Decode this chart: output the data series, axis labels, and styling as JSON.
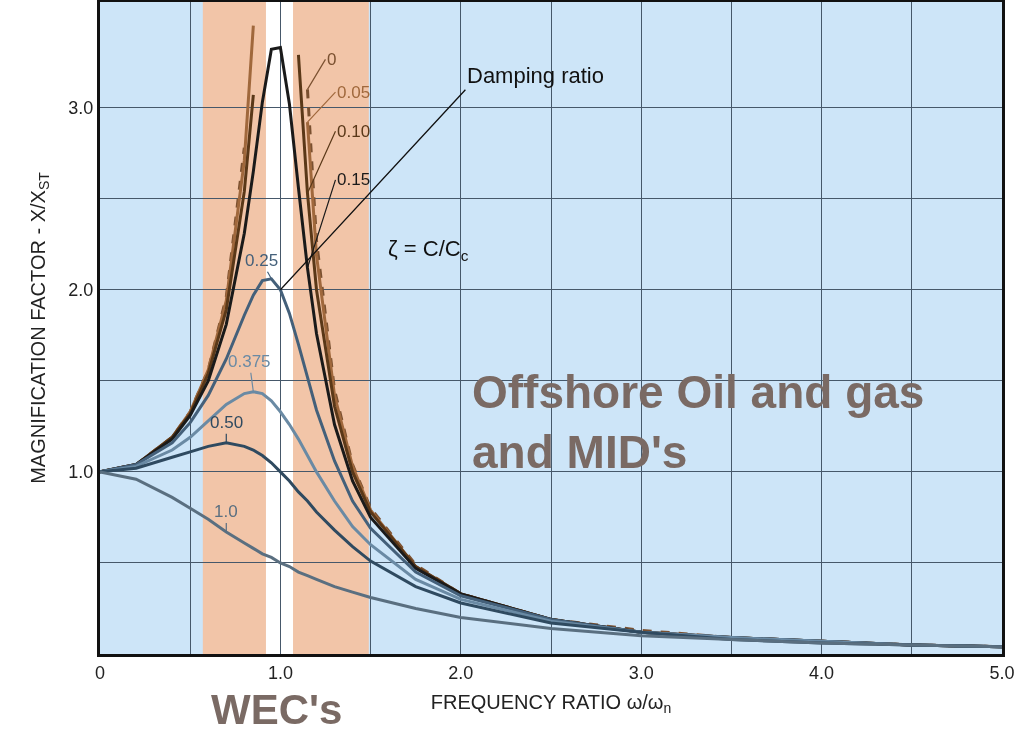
{
  "chart_data": {
    "type": "line",
    "xlabel": "FREQUENCY RATIO ω/ω$_{n}$",
    "ylabel": "MAGNIFICATION FACTOR - X/X$_{ST}$",
    "x": [
      0,
      0.2,
      0.4,
      0.5,
      0.6,
      0.7,
      0.8,
      0.85,
      0.9,
      0.95,
      1.0,
      1.05,
      1.1,
      1.15,
      1.2,
      1.3,
      1.4,
      1.5,
      1.75,
      2.0,
      2.5,
      3.0,
      3.5,
      4.0,
      4.5,
      5.0
    ],
    "series": [
      {
        "name": "0",
        "color": "#7a5030",
        "line_style": "dashed",
        "values": [
          1,
          1.04,
          1.19,
          1.33,
          1.56,
          1.96,
          2.78,
          null,
          null,
          null,
          null,
          null,
          null,
          3.1,
          2.27,
          1.45,
          1.04,
          0.8,
          0.49,
          0.33,
          0.19,
          0.13,
          0.09,
          0.07,
          0.05,
          0.04
        ]
      },
      {
        "name": "0.05",
        "color": "#a0683c",
        "values": [
          1,
          1.04,
          1.19,
          1.33,
          1.56,
          1.94,
          2.71,
          3.45,
          null,
          null,
          null,
          null,
          null,
          2.92,
          2.19,
          1.42,
          1.03,
          0.79,
          0.48,
          0.33,
          0.19,
          0.12,
          0.09,
          0.07,
          0.05,
          0.04
        ]
      },
      {
        "name": "0.10",
        "color": "#5a3818",
        "values": [
          1,
          1.04,
          1.19,
          1.32,
          1.54,
          1.89,
          2.54,
          3.07,
          null,
          null,
          null,
          null,
          3.29,
          2.53,
          2.0,
          1.36,
          1.0,
          0.78,
          0.48,
          0.33,
          0.19,
          0.12,
          0.09,
          0.07,
          0.05,
          0.04
        ]
      },
      {
        "name": "0.15",
        "color": "#1a1a1a",
        "values": [
          1,
          1.04,
          1.18,
          1.31,
          1.5,
          1.81,
          2.31,
          2.65,
          3.03,
          3.32,
          3.33,
          3.02,
          2.56,
          2.12,
          1.76,
          1.26,
          0.95,
          0.75,
          0.47,
          0.33,
          0.19,
          0.12,
          0.09,
          0.07,
          0.05,
          0.04
        ]
      },
      {
        "name": "0.25",
        "color": "#44607a",
        "values": [
          1,
          1.04,
          1.16,
          1.27,
          1.42,
          1.62,
          1.86,
          1.97,
          2.05,
          2.06,
          2.0,
          1.87,
          1.7,
          1.52,
          1.34,
          1.06,
          0.84,
          0.69,
          0.45,
          0.32,
          0.19,
          0.12,
          0.09,
          0.07,
          0.05,
          0.04
        ]
      },
      {
        "name": "0.375",
        "color": "#6a8aa4",
        "values": [
          1,
          1.03,
          1.12,
          1.19,
          1.28,
          1.37,
          1.43,
          1.44,
          1.43,
          1.39,
          1.33,
          1.26,
          1.18,
          1.09,
          1.0,
          0.84,
          0.7,
          0.6,
          0.41,
          0.3,
          0.18,
          0.12,
          0.09,
          0.07,
          0.05,
          0.04
        ]
      },
      {
        "name": "0.50",
        "color": "#2f4a60",
        "values": [
          1,
          1.02,
          1.08,
          1.11,
          1.14,
          1.16,
          1.14,
          1.12,
          1.09,
          1.05,
          1.0,
          0.95,
          0.89,
          0.84,
          0.78,
          0.68,
          0.59,
          0.51,
          0.37,
          0.28,
          0.17,
          0.12,
          0.08,
          0.06,
          0.05,
          0.04
        ]
      },
      {
        "name": "1.0",
        "color": "#5a6f80",
        "values": [
          1,
          0.96,
          0.86,
          0.8,
          0.74,
          0.67,
          0.61,
          0.58,
          0.55,
          0.53,
          0.5,
          0.48,
          0.45,
          0.43,
          0.41,
          0.37,
          0.34,
          0.31,
          0.25,
          0.2,
          0.14,
          0.1,
          0.08,
          0.06,
          0.05,
          0.04
        ]
      }
    ],
    "xlim": [
      0,
      5.0
    ],
    "xticks": [
      0,
      {
        "value": 0.5,
        "label": null
      },
      {
        "value": 1,
        "label": "1.0"
      },
      {
        "value": 1.5,
        "label": null
      },
      {
        "value": 2,
        "label": "2.0"
      },
      {
        "value": 2.5,
        "label": null
      },
      {
        "value": 3,
        "label": "3.0"
      },
      {
        "value": 3.5,
        "label": null
      },
      {
        "value": 4,
        "label": "4.0"
      },
      {
        "value": 4.5,
        "label": null
      },
      {
        "value": 5,
        "label": "5.0"
      }
    ],
    "ylim": [
      0,
      3.58
    ],
    "yticks": [
      {
        "value": 0,
        "label": null
      },
      {
        "value": 0.5,
        "label": null
      },
      {
        "value": 1.0,
        "label": "1.0"
      },
      {
        "value": 1.5,
        "label": null
      },
      {
        "value": 2.0,
        "label": "2.0"
      },
      {
        "value": 2.5,
        "label": null
      },
      {
        "value": 3.0,
        "label": "3.0"
      }
    ],
    "grid": true,
    "legend": false,
    "marker": "none",
    "bands": [
      {
        "axis": "x",
        "from": 0.57,
        "to": 0.92,
        "color": "#f2c5a8"
      },
      {
        "axis": "x",
        "from": 0.92,
        "to": 1.07,
        "color": "#ffffff"
      },
      {
        "axis": "x",
        "from": 1.07,
        "to": 1.49,
        "color": "#f2c5a8"
      }
    ],
    "annotations": [
      {
        "text": "Damping ratio",
        "x": 1.0,
        "y": 2.0
      },
      "ζ = C/C$_{c}$",
      "Offshore Oil and gas and MID's",
      "WEC's"
    ]
  }
}
